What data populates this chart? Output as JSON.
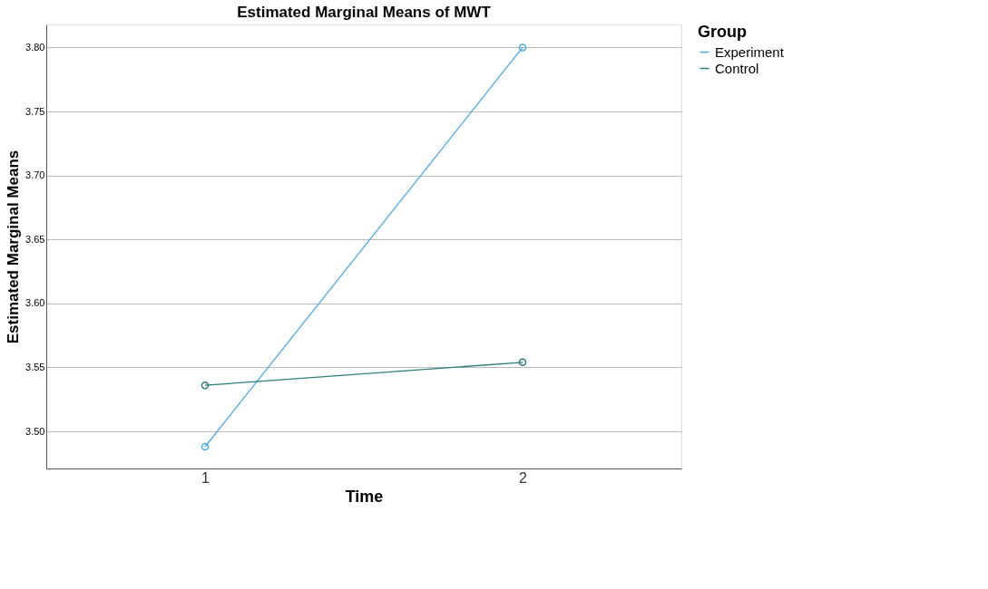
{
  "chart_data": {
    "type": "line",
    "title": "Estimated Marginal Means of MWT",
    "xlabel": "Time",
    "ylabel": "Estimated Marginal Means",
    "legend_title": "Group",
    "categories": [
      "1",
      "2"
    ],
    "series": [
      {
        "name": "Experiment",
        "color": "#4aa8e8",
        "values": [
          3.488,
          3.8
        ]
      },
      {
        "name": "Control",
        "color": "#2e7d78",
        "values": [
          3.536,
          3.554
        ]
      }
    ],
    "ylim": [
      3.471,
      3.818
    ],
    "yticks": [
      {
        "value": 3.5,
        "label": "3.50"
      },
      3.55,
      {
        "value": 3.6,
        "label": "3.60"
      },
      3.65,
      {
        "value": 3.7,
        "label": "3.70"
      },
      3.75,
      {
        "value": 3.8,
        "label": "3.80"
      }
    ],
    "grid": "y",
    "legend": "top right",
    "marker": "circle",
    "line_style": "solid"
  }
}
